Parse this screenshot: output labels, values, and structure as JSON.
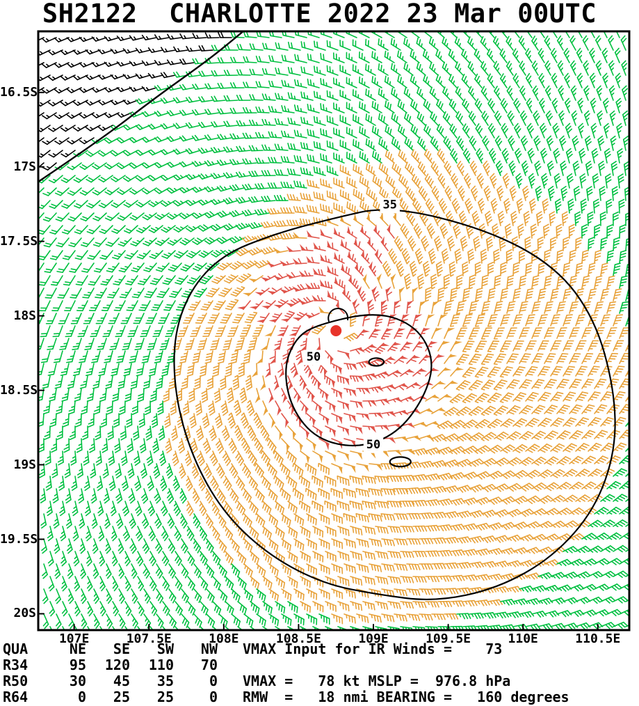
{
  "title": "SH2122  CHARLOTTE 2022 23 Mar 00UTC",
  "chart_data": {
    "type": "wind_barb_field",
    "title": "SH2122  CHARLOTTE 2022 23 Mar 00UTC",
    "storm": {
      "id": "SH2122",
      "name": "CHARLOTTE",
      "datetime": "2022 23 Mar 00UTC",
      "vmax_kt": 78,
      "mslp_hpa": 976.8,
      "rmw_nmi": 18,
      "bearing_deg": 160,
      "vmax_input_ir_kt": 73,
      "center_lon": 108.75,
      "center_lat": -18.1
    },
    "x_axis": {
      "range": [
        106.76,
        110.71
      ],
      "ticks": [
        {
          "label": "107E",
          "lon": 107
        },
        {
          "label": "107.5E",
          "lon": 107.5
        },
        {
          "label": "108E",
          "lon": 108
        },
        {
          "label": "108.5E",
          "lon": 108.5
        },
        {
          "label": "109E",
          "lon": 109
        },
        {
          "label": "109.5E",
          "lon": 109.5
        },
        {
          "label": "110E",
          "lon": 110
        },
        {
          "label": "110.5E",
          "lon": 110.5
        }
      ]
    },
    "y_axis": {
      "range": [
        -16.09,
        -20.11
      ],
      "ticks": [
        {
          "label": "16.5S",
          "lat": -16.5
        },
        {
          "label": "17S",
          "lat": -17
        },
        {
          "label": "17.5S",
          "lat": -17.5
        },
        {
          "label": "18S",
          "lat": -18
        },
        {
          "label": "18.5S",
          "lat": -18.5
        },
        {
          "label": "19S",
          "lat": -19
        },
        {
          "label": "19.5S",
          "lat": -19.5
        },
        {
          "label": "20S",
          "lat": -20
        }
      ]
    },
    "wind_radii_nmi": {
      "quadrants": [
        "NE",
        "SE",
        "SW",
        "NW"
      ],
      "R34": [
        95,
        120,
        110,
        70
      ],
      "R50": [
        30,
        45,
        35,
        0
      ],
      "R64": [
        0,
        25,
        25,
        0
      ]
    },
    "speed_thresholds_kt": [
      35,
      50
    ],
    "speed_colors": {
      "below_35": "#00c040",
      "kt35_49": "#e8a23a",
      "kt50_up": "#e0544a",
      "masked": "#000000",
      "contour": "#000000",
      "center_marker": "#e8342a"
    },
    "contours": [
      {
        "level_kt": 35,
        "labels": [
          {
            "lon": 109.11,
            "lat": -17.26,
            "text": "35"
          }
        ],
        "points": [
          [
            109.11,
            -17.26
          ],
          [
            109.76,
            -17.42
          ],
          [
            110.22,
            -17.67
          ],
          [
            110.48,
            -18.02
          ],
          [
            110.61,
            -18.49
          ],
          [
            110.62,
            -18.9
          ],
          [
            110.48,
            -19.3
          ],
          [
            110.2,
            -19.62
          ],
          [
            109.83,
            -19.83
          ],
          [
            109.41,
            -19.92
          ],
          [
            109.02,
            -19.87
          ],
          [
            108.67,
            -19.8
          ],
          [
            108.32,
            -19.62
          ],
          [
            108.02,
            -19.35
          ],
          [
            107.81,
            -19.0
          ],
          [
            107.68,
            -18.58
          ],
          [
            107.66,
            -18.16
          ],
          [
            107.77,
            -17.83
          ],
          [
            107.99,
            -17.59
          ],
          [
            108.34,
            -17.45
          ],
          [
            108.71,
            -17.35
          ]
        ]
      },
      {
        "level_kt": 50,
        "labels": [
          {
            "lon": 108.6,
            "lat": -18.28,
            "text": "50"
          },
          {
            "lon": 109.0,
            "lat": -18.87,
            "text": "50"
          }
        ],
        "points": [
          [
            108.62,
            -18.06
          ],
          [
            109.02,
            -17.97
          ],
          [
            109.29,
            -18.07
          ],
          [
            109.41,
            -18.3
          ],
          [
            109.34,
            -18.55
          ],
          [
            109.16,
            -18.79
          ],
          [
            108.9,
            -18.89
          ],
          [
            108.62,
            -18.83
          ],
          [
            108.45,
            -18.62
          ],
          [
            108.4,
            -18.35
          ],
          [
            108.48,
            -18.15
          ]
        ]
      }
    ],
    "contour_islands": [
      {
        "level_kt": 50,
        "lon": 109.18,
        "lat": -18.98,
        "rlon": 0.07,
        "rlat": 0.032
      },
      {
        "level_kt": 50,
        "lon": 109.02,
        "lat": -18.31,
        "rlon": 0.05,
        "rlat": 0.026
      }
    ],
    "mask_boundary": [
      [
        106.76,
        -17.1
      ],
      [
        107.16,
        -16.83
      ],
      [
        107.55,
        -16.53
      ],
      [
        107.9,
        -16.28
      ],
      [
        108.13,
        -16.09
      ]
    ]
  },
  "footer": {
    "rows": [
      {
        "label": "QUA",
        "cols": [
          "NE",
          "SE",
          "SW",
          "NW"
        ],
        "extra": "VMAX Input for IR Winds =    73"
      },
      {
        "label": "R34",
        "cols": [
          "95",
          "120",
          "110",
          "70"
        ],
        "extra": ""
      },
      {
        "label": "R50",
        "cols": [
          "30",
          "45",
          "35",
          "0"
        ],
        "extra": "VMAX =   78 kt MSLP =  976.8 hPa"
      },
      {
        "label": "R64",
        "cols": [
          "0",
          "25",
          "25",
          "0"
        ],
        "extra": "RMW  =   18 nmi BEARING =   160 degrees"
      }
    ]
  }
}
